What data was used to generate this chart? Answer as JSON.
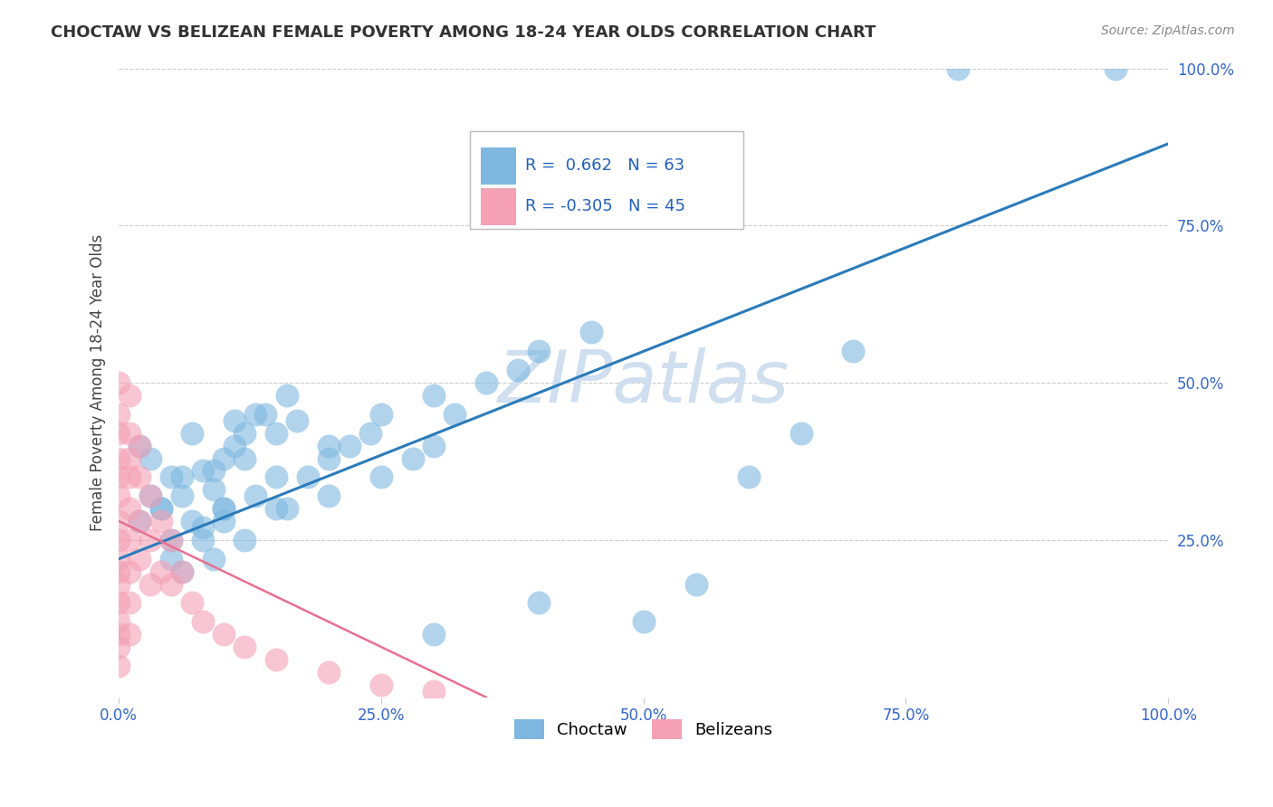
{
  "title": "CHOCTAW VS BELIZEAN FEMALE POVERTY AMONG 18-24 YEAR OLDS CORRELATION CHART",
  "source": "Source: ZipAtlas.com",
  "ylabel": "Female Poverty Among 18-24 Year Olds",
  "xlim": [
    0,
    1.0
  ],
  "ylim": [
    0,
    1.0
  ],
  "xticks": [
    0.0,
    0.25,
    0.5,
    0.75,
    1.0
  ],
  "yticks": [
    0.0,
    0.25,
    0.5,
    0.75,
    1.0
  ],
  "xticklabels": [
    "0.0%",
    "25.0%",
    "50.0%",
    "75.0%",
    "100.0%"
  ],
  "yticklabels_right": [
    "",
    "25.0%",
    "50.0%",
    "75.0%",
    "100.0%"
  ],
  "choctaw_color": "#7eb8e0",
  "belizean_color": "#f4a0b5",
  "choctaw_R": 0.662,
  "choctaw_N": 63,
  "belizean_R": -0.305,
  "belizean_N": 45,
  "trend_line_color": "#2b7bba",
  "belizean_trend_color": "#e87090",
  "watermark": "ZIPatlas",
  "watermark_color": "#d0dff0",
  "legend_color": "#2060c0",
  "choctaw_label": "Choctaw",
  "belizean_label": "Belizeans",
  "choctaw_x": [
    0.02,
    0.03,
    0.04,
    0.05,
    0.06,
    0.07,
    0.08,
    0.09,
    0.1,
    0.02,
    0.03,
    0.05,
    0.07,
    0.08,
    0.1,
    0.11,
    0.12,
    0.13,
    0.04,
    0.06,
    0.09,
    0.11,
    0.12,
    0.14,
    0.15,
    0.16,
    0.17,
    0.05,
    0.08,
    0.1,
    0.13,
    0.15,
    0.18,
    0.2,
    0.22,
    0.24,
    0.06,
    0.09,
    0.12,
    0.16,
    0.2,
    0.25,
    0.28,
    0.3,
    0.32,
    0.1,
    0.15,
    0.2,
    0.25,
    0.3,
    0.35,
    0.38,
    0.4,
    0.45,
    0.3,
    0.4,
    0.5,
    0.55,
    0.6,
    0.65,
    0.7,
    0.8,
    0.95
  ],
  "choctaw_y": [
    0.28,
    0.32,
    0.3,
    0.25,
    0.35,
    0.28,
    0.27,
    0.33,
    0.3,
    0.4,
    0.38,
    0.35,
    0.42,
    0.36,
    0.38,
    0.44,
    0.42,
    0.45,
    0.3,
    0.32,
    0.36,
    0.4,
    0.38,
    0.45,
    0.42,
    0.48,
    0.44,
    0.22,
    0.25,
    0.28,
    0.32,
    0.3,
    0.35,
    0.38,
    0.4,
    0.42,
    0.2,
    0.22,
    0.25,
    0.3,
    0.32,
    0.35,
    0.38,
    0.4,
    0.45,
    0.3,
    0.35,
    0.4,
    0.45,
    0.48,
    0.5,
    0.52,
    0.55,
    0.58,
    0.1,
    0.15,
    0.12,
    0.18,
    0.35,
    0.42,
    0.55,
    1.0,
    1.0
  ],
  "belizean_x": [
    0.0,
    0.0,
    0.0,
    0.0,
    0.0,
    0.0,
    0.0,
    0.0,
    0.0,
    0.0,
    0.0,
    0.0,
    0.0,
    0.0,
    0.0,
    0.01,
    0.01,
    0.01,
    0.01,
    0.01,
    0.01,
    0.01,
    0.01,
    0.02,
    0.02,
    0.02,
    0.02,
    0.03,
    0.03,
    0.03,
    0.04,
    0.04,
    0.05,
    0.05,
    0.06,
    0.07,
    0.08,
    0.1,
    0.12,
    0.15,
    0.2,
    0.25,
    0.3,
    0.0,
    0.01
  ],
  "belizean_y": [
    0.5,
    0.45,
    0.42,
    0.38,
    0.35,
    0.32,
    0.28,
    0.25,
    0.22,
    0.2,
    0.18,
    0.15,
    0.12,
    0.1,
    0.08,
    0.48,
    0.42,
    0.38,
    0.35,
    0.3,
    0.25,
    0.2,
    0.15,
    0.4,
    0.35,
    0.28,
    0.22,
    0.32,
    0.25,
    0.18,
    0.28,
    0.2,
    0.25,
    0.18,
    0.2,
    0.15,
    0.12,
    0.1,
    0.08,
    0.06,
    0.04,
    0.02,
    0.01,
    0.05,
    0.1
  ]
}
